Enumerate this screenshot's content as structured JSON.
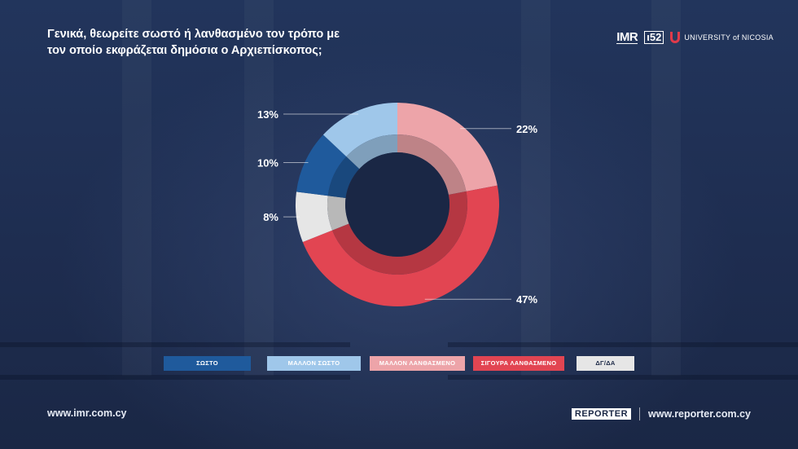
{
  "title": "Γενικά, θεωρείτε σωστό ή λανθασμένο τον τρόπο με τον οποίο εκφράζεται δημόσια ο Αρχιεπίσκοπος;",
  "logos": {
    "imr": "IMR",
    "imr_subtitle": "UNIVERSITY OF NICOSIA",
    "partner": "ι52",
    "unic": "UNIVERSITY of NICOSIA"
  },
  "footer": {
    "left_url": "www.imr.com.cy",
    "reporter_logo": "REPORTER",
    "right_url": "www.reporter.com.cy"
  },
  "colors": {
    "background": "#1f2f52",
    "sosto": "#1f5a9c",
    "mallon_sosto": "#9fc7ea",
    "mallon_lanthasmeno": "#eda4a9",
    "sigoura_lanthasmeno": "#e24552",
    "dg_da": "#e6e6e6"
  },
  "chart_data": {
    "type": "pie",
    "title": "Γενικά, θεωρείτε σωστό ή λανθασμένο τον τρόπο με τον οποίο εκφράζεται δημόσια ο Αρχιεπίσκοπος;",
    "categories": [
      "ΜΑΛΛΟΝ ΛΑΝΘΑΣΜΕΝΟ",
      "ΣΙΓΟΥΡΑ ΛΑΝΘΑΣΜΕΝΟ",
      "ΔΓ/ΔΑ",
      "ΣΩΣΤΟ",
      "ΜΑΛΛΟΝ ΣΩΣΤΟ"
    ],
    "values": [
      22,
      47,
      8,
      10,
      13
    ],
    "labels": [
      "22%",
      "47%",
      "8%",
      "10%",
      "13%"
    ],
    "colors": [
      "#eda4a9",
      "#e24552",
      "#e6e6e6",
      "#1f5a9c",
      "#9fc7ea"
    ],
    "legend": [
      "ΣΩΣΤΟ",
      "ΜΑΛΛΟΝ ΣΩΣΤΟ",
      "ΜΑΛΛΟΝ ΛΑΝΘΑΣΜΕΝΟ",
      "ΣΙΓΟΥΡΑ ΛΑΝΘΑΣΜΕΝΟ",
      "ΔΓ/ΔΑ"
    ],
    "legend_colors": [
      "#1f5a9c",
      "#9fc7ea",
      "#eda4a9",
      "#e24552",
      "#e6e6e6"
    ],
    "legend_placement": "bottom"
  }
}
